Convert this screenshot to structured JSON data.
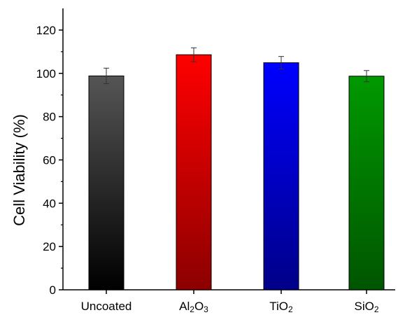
{
  "chart_data": {
    "type": "bar",
    "title": "",
    "xlabel": "",
    "ylabel": "Cell Viability (%)",
    "ylim": [
      0,
      130
    ],
    "yticks": [
      0,
      20,
      40,
      60,
      80,
      100,
      120
    ],
    "grid": false,
    "categories": [
      {
        "label": "Uncoated",
        "parts": [
          {
            "t": "Uncoated",
            "sub": false
          }
        ]
      },
      {
        "label": "Al2O3",
        "parts": [
          {
            "t": "Al",
            "sub": false
          },
          {
            "t": "2",
            "sub": true
          },
          {
            "t": "O",
            "sub": false
          },
          {
            "t": "3",
            "sub": true
          }
        ]
      },
      {
        "label": "TiO2",
        "parts": [
          {
            "t": "TiO",
            "sub": false
          },
          {
            "t": "2",
            "sub": true
          }
        ]
      },
      {
        "label": "SiO2",
        "parts": [
          {
            "t": "SiO",
            "sub": false
          },
          {
            "t": "2",
            "sub": true
          }
        ]
      }
    ],
    "values": [
      98.8,
      108.6,
      104.9,
      98.7
    ],
    "errors": [
      3.6,
      3.2,
      2.9,
      2.6
    ],
    "bar_colors": [
      {
        "top": "#555555",
        "bottom": "#000000"
      },
      {
        "top": "#ff0000",
        "bottom": "#8c0000"
      },
      {
        "top": "#0000ff",
        "bottom": "#000088"
      },
      {
        "top": "#009900",
        "bottom": "#005500"
      }
    ]
  }
}
